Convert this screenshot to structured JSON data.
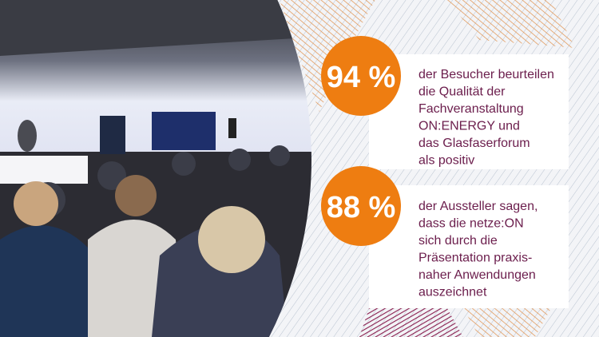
{
  "stats": [
    {
      "figure": "94 %",
      "lines": [
        "der Besucher beurteilen",
        "die Qualität der",
        "Fachveranstaltung",
        "ON:ENERGY und",
        "das Glasfaserforum",
        "als positiv"
      ]
    },
    {
      "figure": "88 %",
      "lines": [
        "der Aussteller sagen,",
        "dass die netze:ON",
        "sich durch die",
        "Präsentation praxis-",
        "naher Anwendungen",
        "auszeichnet"
      ]
    }
  ]
}
